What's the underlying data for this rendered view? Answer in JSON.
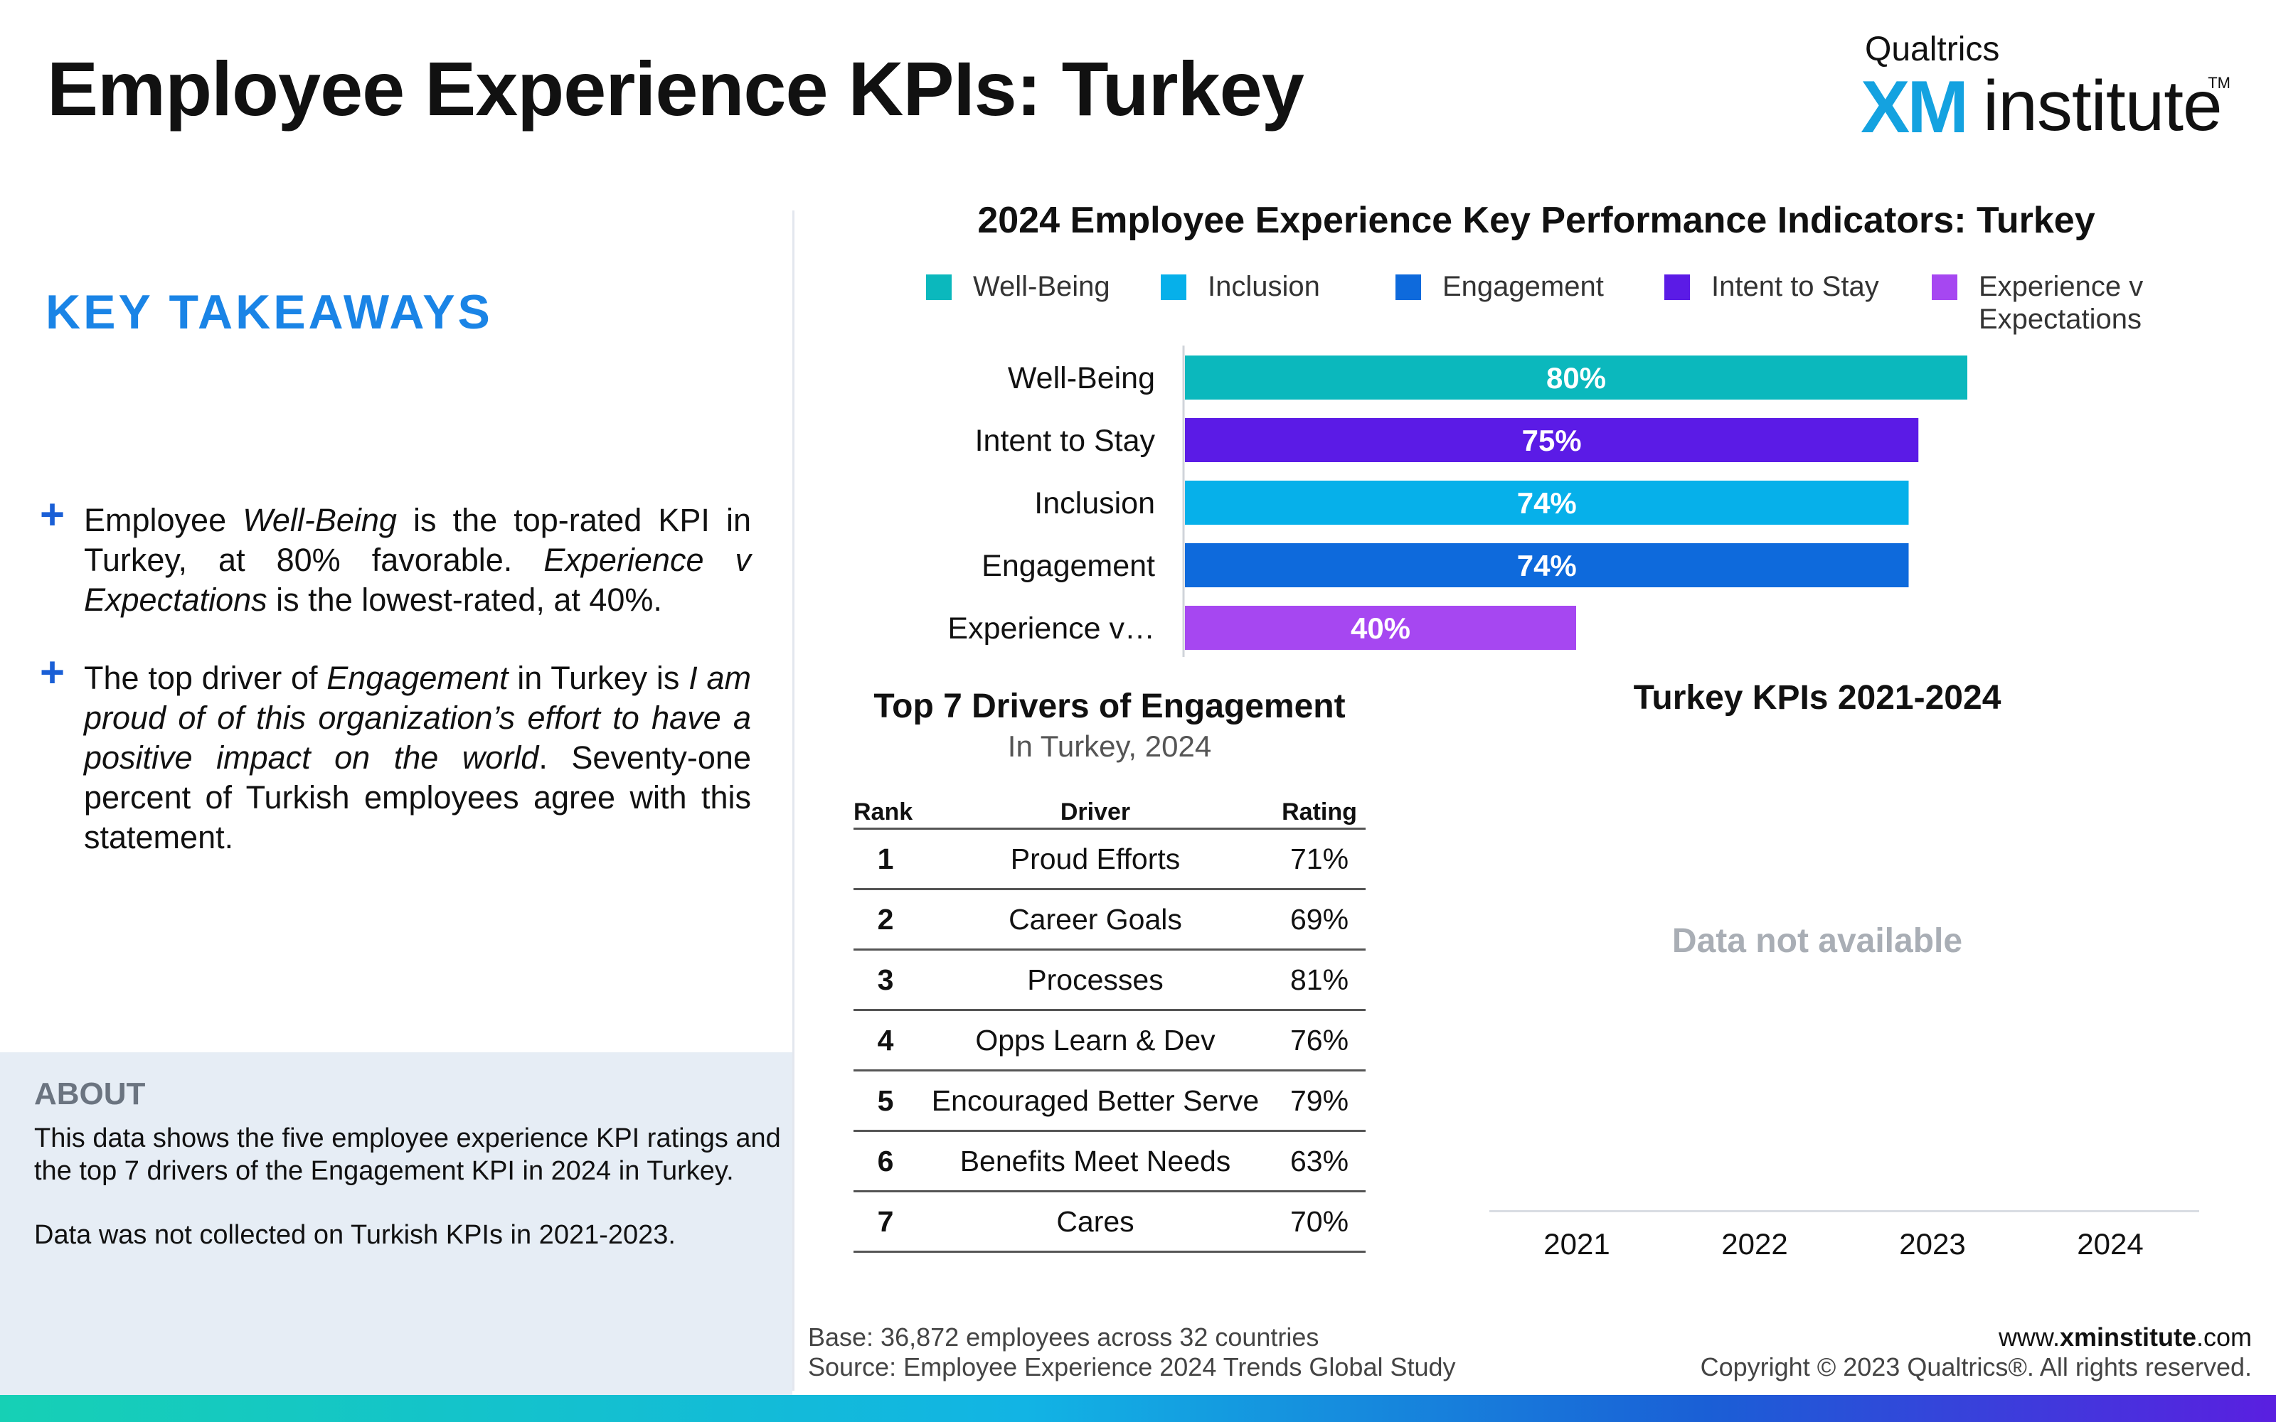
{
  "header": {
    "title": "Employee Experience KPIs: Turkey",
    "logo": {
      "top": "Qualtrics",
      "xm": "XM",
      "institute": "institute",
      "tm": "TM"
    }
  },
  "takeaways": {
    "title": "KEY TAKEAWAYS",
    "bullet1": {
      "t1": "Employee ",
      "i1": "Well-Being",
      "t2": " is the top-rated KPI in Turkey, at 80% favorable. ",
      "i2": "Experience v Expectations",
      "t3": " is the lowest-rated, at 40%."
    },
    "bullet2": {
      "t1": "The top driver of ",
      "i1": "Engagement",
      "t2": " in Turkey is ",
      "i2": "I am proud of of this organization’s effort to have a positive impact on the world",
      "t3": ". Seventy-one percent of Turkish employees agree with this statement."
    }
  },
  "about": {
    "title": "ABOUT",
    "p1": "This data shows the five employee experience KPI ratings and the top 7 drivers of the Engagement KPI in 2024 in Turkey.",
    "p2": "Data was not collected on Turkish KPIs in 2021-2023."
  },
  "chart_data": [
    {
      "type": "bar",
      "orientation": "horizontal",
      "title": "2024 Employee Experience Key Performance Indicators: Turkey",
      "legend": {
        "placement": "top",
        "entries": [
          {
            "label": "Well-Being",
            "color": "#0bb8bd"
          },
          {
            "label": "Inclusion",
            "color": "#06b0ea"
          },
          {
            "label": "Engagement",
            "color": "#0e6adc"
          },
          {
            "label": "Intent to Stay",
            "color": "#5b1be6"
          },
          {
            "label": "Experience v Expectations",
            "color": "#a647f1"
          }
        ]
      },
      "categories": [
        "Well-Being",
        "Intent to Stay",
        "Inclusion",
        "Engagement",
        "Experience v…"
      ],
      "values": [
        80,
        75,
        74,
        74,
        40
      ],
      "value_labels": [
        "80%",
        "75%",
        "74%",
        "74%",
        "40%"
      ],
      "colors": [
        "#0bb8bd",
        "#5b1be6",
        "#06b0ea",
        "#0e6adc",
        "#a647f1"
      ],
      "xlim": [
        0,
        100
      ],
      "grid": false
    },
    {
      "type": "table",
      "title": "Top 7 Drivers of Engagement",
      "subtitle": "In Turkey, 2024",
      "columns": [
        "Rank",
        "Driver",
        "Rating"
      ],
      "rows": [
        [
          "1",
          "Proud Efforts",
          "71%"
        ],
        [
          "2",
          "Career Goals",
          "69%"
        ],
        [
          "3",
          "Processes",
          "81%"
        ],
        [
          "4",
          "Opps Learn & Dev",
          "76%"
        ],
        [
          "5",
          "Encouraged Better Serve",
          "79%"
        ],
        [
          "6",
          "Benefits Meet Needs",
          "63%"
        ],
        [
          "7",
          "Cares",
          "70%"
        ]
      ]
    },
    {
      "type": "line",
      "title": "Turkey KPIs 2021-2024",
      "categories": [
        "2021",
        "2022",
        "2023",
        "2024"
      ],
      "annotation": "Data not available",
      "series": []
    }
  ],
  "footer": {
    "base": "Base: 36,872 employees across 32 countries",
    "source": "Source: Employee Experience 2024 Trends Global Study",
    "site_prefix": "www.",
    "site_bold": "xminstitute",
    "site_suffix": ".com",
    "copyright": "Copyright © 2023 Qualtrics®. All rights reserved."
  }
}
